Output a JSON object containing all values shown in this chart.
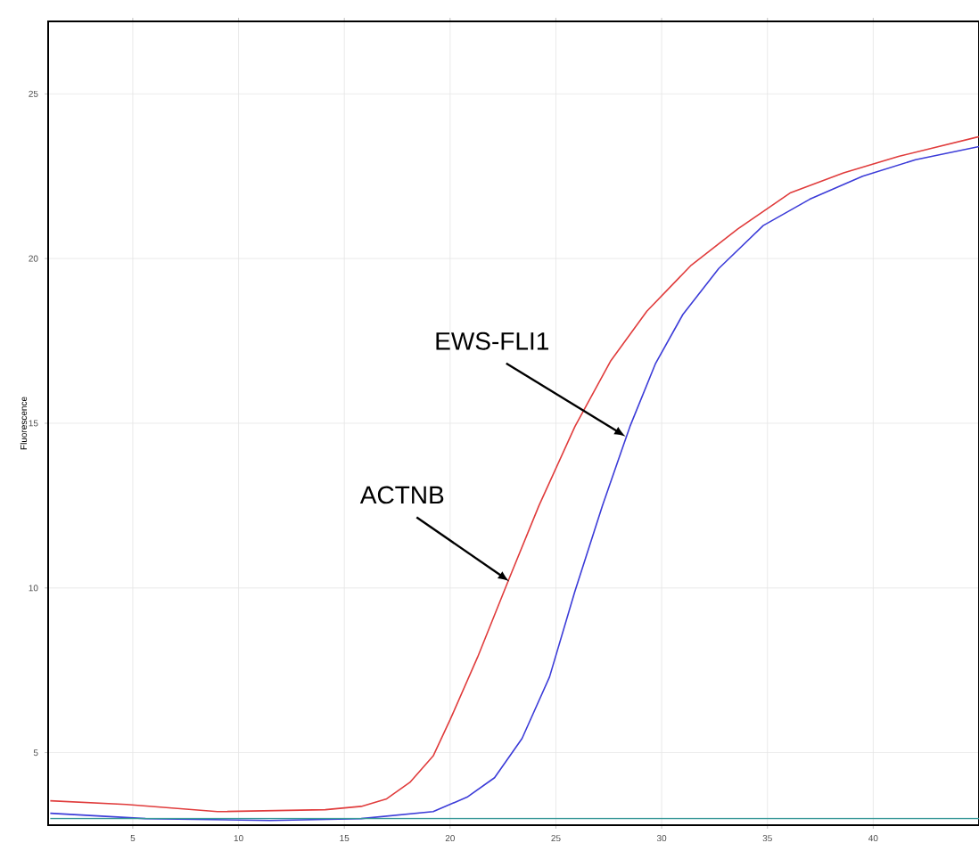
{
  "chart_data": {
    "type": "line",
    "ylabel": "Fluorescence",
    "xlim": [
      1,
      45
    ],
    "ylim": [
      2.8,
      27.2
    ],
    "xticks": [
      5,
      10,
      15,
      20,
      25,
      30,
      35,
      40
    ],
    "yticks": [
      5,
      10,
      15,
      20,
      25
    ],
    "grid": true,
    "marker": "none",
    "line_style": "solid",
    "series": [
      {
        "color": "#e03c3c",
        "x": [
          1.1,
          4.7,
          9.0,
          14.1,
          15.8,
          17.0,
          18.1,
          19.2,
          20.0,
          21.3,
          22.8,
          24.2,
          25.9,
          27.6,
          29.3,
          31.4,
          33.6,
          36.1,
          38.6,
          41.2,
          45
        ],
        "values": [
          3.54,
          3.43,
          3.21,
          3.27,
          3.37,
          3.6,
          4.1,
          4.9,
          6.0,
          7.9,
          10.3,
          12.5,
          14.9,
          16.9,
          18.4,
          19.8,
          20.9,
          22.0,
          22.6,
          23.1,
          23.7
        ]
      },
      {
        "color": "#3c3cd8",
        "x": [
          1.1,
          5.6,
          11.5,
          15.8,
          19.2,
          20.8,
          22.1,
          23.4,
          24.7,
          25.9,
          27.2,
          28.5,
          29.7,
          31.0,
          32.7,
          34.8,
          37.0,
          39.5,
          42.0,
          45
        ],
        "values": [
          3.16,
          3.0,
          2.94,
          3.0,
          3.21,
          3.65,
          4.24,
          5.43,
          7.3,
          9.9,
          12.5,
          14.9,
          16.8,
          18.3,
          19.7,
          21.0,
          21.8,
          22.5,
          23.0,
          23.4
        ]
      },
      {
        "color": "#3a9a9a",
        "x": [
          1.1,
          45
        ],
        "values": [
          3.0,
          3.0
        ]
      }
    ],
    "annotations": [
      {
        "text": "ACTNB",
        "x": 22.8,
        "y": 10.2
      },
      {
        "text": "EWS-FLI1",
        "x": 28.3,
        "y": 14.6
      }
    ]
  }
}
